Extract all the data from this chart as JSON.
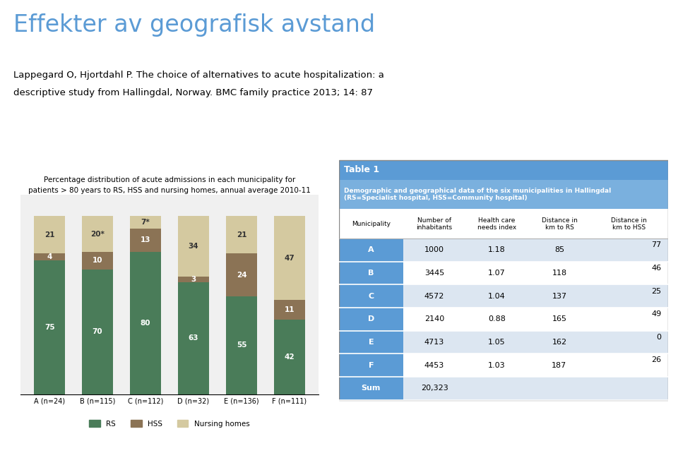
{
  "title": "Effekter av geografisk avstand",
  "subtitle_line1": "Lappegard O, Hjortdahl P. The choice of alternatives to acute hospitalization: a",
  "subtitle_line2": "descriptive study from Hallingdal, Norway. BMC family practice 2013; 14: 87",
  "bar_title_line1": "Percentage distribution of acute admissions in each municipality for",
  "bar_title_line2": "patients > 80 years to RS, HSS and nursing homes, annual average 2010-11",
  "categories": [
    "A (n=24)",
    "B (n=115)",
    "C (n=112)",
    "D (n=32)",
    "E (n=136)",
    "F (n=111)"
  ],
  "rs_values": [
    75,
    70,
    80,
    63,
    55,
    42
  ],
  "hss_values": [
    4,
    10,
    13,
    3,
    24,
    11
  ],
  "nursing_values": [
    21,
    20,
    7,
    34,
    21,
    47
  ],
  "rs_labels": [
    "75",
    "70",
    "80",
    "63",
    "55",
    "42"
  ],
  "hss_labels": [
    "4",
    "10",
    "13",
    "3",
    "24",
    "11"
  ],
  "nursing_labels": [
    "21",
    "20*",
    "7*",
    "34",
    "21",
    "47"
  ],
  "rs_color": "#4a7c59",
  "hss_color": "#8b7355",
  "nursing_color": "#d4c9a0",
  "bg_color": "#f0f0f0",
  "table_header_color": "#5b9bd5",
  "table_subtitle_color": "#7ab0de",
  "table_row_light": "#dce6f1",
  "table_row_white": "#ffffff",
  "table_muni_color": "#5b9bd5",
  "table_title": "Table 1",
  "table_subtitle": "Demographic and geographical data of the six municipalities in Hallingdal\n(RS=Specialist hospital, HSS=Community hospital)",
  "col_headers": [
    "Municipality",
    "Number of\ninhabitants",
    "Health care\nneeds index",
    "Distance in\nkm to RS",
    "Distance in\nkm to HSS"
  ],
  "table_rows": [
    [
      "A",
      "1000",
      "1.18",
      "85",
      "77"
    ],
    [
      "B",
      "3445",
      "1.07",
      "118",
      "46"
    ],
    [
      "C",
      "4572",
      "1.04",
      "137",
      "25"
    ],
    [
      "D",
      "2140",
      "0.88",
      "165",
      "49"
    ],
    [
      "E",
      "4713",
      "1.05",
      "162",
      "0"
    ],
    [
      "F",
      "4453",
      "1.03",
      "187",
      "26"
    ],
    [
      "Sum",
      "20,323",
      "",
      "",
      ""
    ]
  ],
  "legend_labels": [
    "RS",
    "HSS",
    "Nursing homes"
  ]
}
